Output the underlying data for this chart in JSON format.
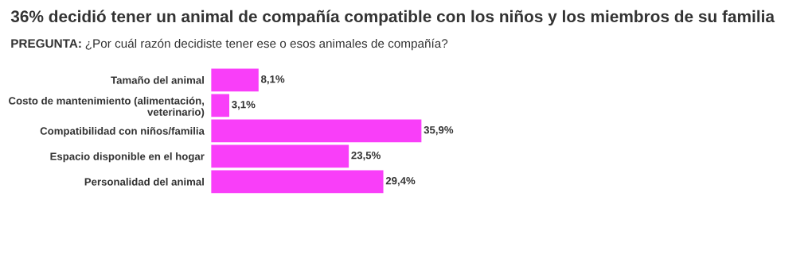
{
  "chart_data": {
    "type": "bar",
    "orientation": "horizontal",
    "title": "36% decidió tener un animal de compañía compatible con los niños y los miembros de su familia",
    "subtitle": "PREGUNTA: ¿Por cuál razón decidiste tener ese o esos animales de compañía?",
    "categories": [
      "Tamaño del animal",
      "Costo de mantenimiento (alimentación,\nveterinario)",
      "Compatibilidad con niños/familia",
      "Espacio disponible en el hogar",
      "Personalidad del animal"
    ],
    "values": [
      8.1,
      3.1,
      35.9,
      23.5,
      29.4
    ],
    "value_labels": [
      "8,1%",
      "3,1%",
      "35,9%",
      "23,5%",
      "29,4%"
    ],
    "color": "#f93ef9",
    "grid": false,
    "legend": false
  }
}
